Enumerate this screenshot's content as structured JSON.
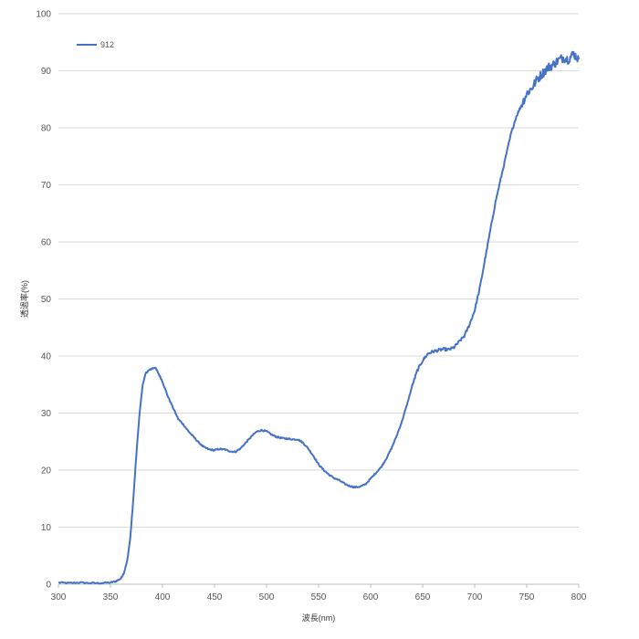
{
  "chart_data": {
    "type": "line",
    "title": "",
    "xlabel": "波長(nm)",
    "ylabel": "透過率(%)",
    "xlim": [
      300,
      800
    ],
    "ylim": [
      0,
      100
    ],
    "x_ticks": [
      300,
      350,
      400,
      450,
      500,
      550,
      600,
      650,
      700,
      750,
      800
    ],
    "y_ticks": [
      0,
      10,
      20,
      30,
      40,
      50,
      60,
      70,
      80,
      90,
      100
    ],
    "grid": "horizontal",
    "legend_position": "top-left",
    "series": [
      {
        "name": "912",
        "color": "#4472C4",
        "x": [
          300,
          310,
          320,
          330,
          340,
          350,
          355,
          360,
          363,
          366,
          369,
          372,
          375,
          378,
          381,
          384,
          387,
          390,
          393,
          396,
          400,
          405,
          410,
          415,
          420,
          425,
          430,
          435,
          440,
          445,
          450,
          455,
          460,
          465,
          470,
          475,
          480,
          485,
          490,
          495,
          500,
          505,
          510,
          515,
          520,
          525,
          530,
          535,
          540,
          545,
          550,
          555,
          560,
          565,
          570,
          575,
          580,
          585,
          590,
          595,
          600,
          605,
          610,
          615,
          620,
          625,
          630,
          635,
          640,
          645,
          650,
          655,
          660,
          665,
          670,
          675,
          680,
          685,
          690,
          695,
          700,
          705,
          710,
          715,
          720,
          725,
          730,
          735,
          740,
          745,
          750,
          755,
          760,
          765,
          770,
          775,
          780,
          785,
          790,
          795,
          800
        ],
        "y": [
          0.3,
          0.2,
          0.3,
          0.2,
          0.2,
          0.3,
          0.5,
          1.0,
          2.0,
          4.0,
          8.0,
          15.0,
          23.0,
          30.0,
          35.0,
          37.0,
          37.5,
          37.8,
          38.0,
          37.0,
          35.5,
          33.0,
          31.0,
          29.0,
          28.0,
          26.8,
          25.8,
          24.8,
          24.0,
          23.6,
          23.5,
          23.7,
          23.6,
          23.3,
          23.2,
          23.8,
          24.8,
          25.8,
          26.7,
          27.0,
          26.8,
          26.2,
          25.8,
          25.6,
          25.5,
          25.4,
          25.4,
          24.8,
          23.8,
          22.5,
          21.0,
          20.0,
          19.2,
          18.6,
          18.2,
          17.6,
          17.2,
          17.0,
          17.1,
          17.5,
          18.5,
          19.5,
          20.5,
          22.0,
          23.8,
          26.0,
          28.5,
          31.5,
          34.8,
          37.5,
          39.2,
          40.4,
          40.8,
          41.0,
          41.2,
          41.1,
          41.5,
          42.5,
          43.5,
          45.5,
          48.0,
          52.0,
          57.0,
          62.0,
          67.0,
          71.0,
          75.0,
          79.0,
          82.0,
          84.0,
          86.0,
          87.0,
          88.5,
          89.5,
          90.5,
          91.0,
          91.8,
          92.3,
          92.0,
          93.0,
          92.0
        ]
      }
    ]
  }
}
